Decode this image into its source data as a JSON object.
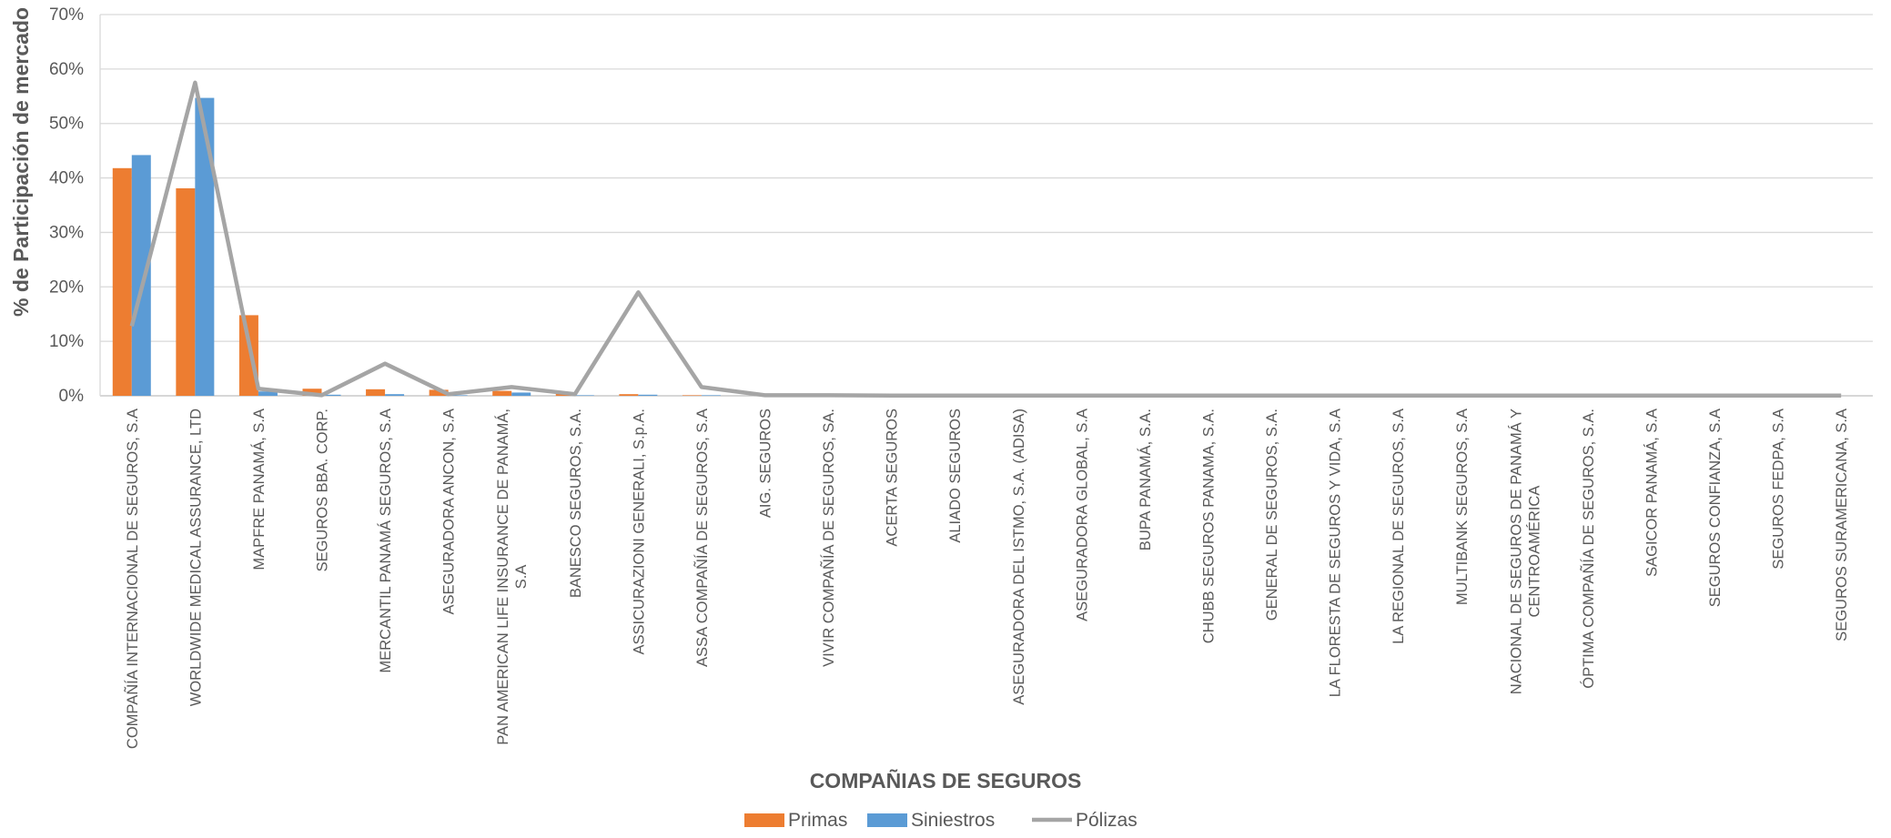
{
  "chart_data": {
    "type": "bar",
    "title": "",
    "xlabel": "COMPAÑIAS DE SEGUROS",
    "ylabel": "% de Participación de mercado",
    "ylim": [
      0,
      70
    ],
    "yticks": [
      "0%",
      "10%",
      "20%",
      "30%",
      "40%",
      "50%",
      "60%",
      "70%"
    ],
    "grid": true,
    "legend_position": "bottom",
    "colors": {
      "Primas": "#ED7D31",
      "Siniestros": "#5B9BD5",
      "Pólizas": "#A5A5A5"
    },
    "categories": [
      [
        "COMPAÑÍA INTERNACIONAL DE SEGUROS, S.A"
      ],
      [
        "WORLDWIDE MEDICAL ASSURANCE, LTD"
      ],
      [
        "MAPFRE PANAMÁ, S.A"
      ],
      [
        "SEGUROS BBA. CORP."
      ],
      [
        "MERCANTIL PANAMÁ SEGUROS, S.A"
      ],
      [
        "ASEGURADORA ANCON, S.A"
      ],
      [
        "PAN AMERICAN LIFE INSURANCE DE PANAMÁ,",
        "S.A"
      ],
      [
        "BANESCO SEGUROS, S.A."
      ],
      [
        "ASSICURAZIONI GENERALI, S.p.A."
      ],
      [
        "ASSA COMPAÑÍA DE SEGUROS, S.A"
      ],
      [
        "AIG.  SEGUROS"
      ],
      [
        "VIVIR COMPAÑÍA DE SEGUROS, SA."
      ],
      [
        "ACERTA SEGUROS"
      ],
      [
        "ALIADO SEGUROS"
      ],
      [
        "ASEGURADORA DEL ISTMO, S.A. (ADISA)"
      ],
      [
        "ASEGURADORA GLOBAL, S.A"
      ],
      [
        "BUPA PANAMÁ, S.A."
      ],
      [
        "CHUBB SEGUROS PANAMA, S.A."
      ],
      [
        "GENERAL DE SEGUROS, S.A."
      ],
      [
        "LA FLORESTA DE SEGUROS Y VIDA, S.A"
      ],
      [
        "LA REGIONAL DE SEGUROS, S.A"
      ],
      [
        "MULTIBANK SEGUROS, S.A"
      ],
      [
        "NACIONAL DE SEGUROS  DE PANAMÁ Y",
        "CENTROAMÉRICA"
      ],
      [
        "ÓPTIMA COMPAÑÍA DE SEGUROS, S.A."
      ],
      [
        "SAGICOR PANAMÁ, S.A"
      ],
      [
        "SEGUROS CONFIANZA, S.A"
      ],
      [
        "SEGUROS FEDPA, S.A"
      ],
      [
        "SEGUROS SURAMERICANA, S.A"
      ]
    ],
    "series": [
      {
        "name": "Primas",
        "type": "bar",
        "values": [
          41.8,
          38.1,
          14.8,
          1.3,
          1.2,
          1.1,
          0.9,
          0.4,
          0.3,
          0.1,
          0,
          0,
          0,
          0,
          0,
          0,
          0,
          0,
          0,
          0,
          0,
          0,
          0,
          0,
          0,
          0,
          0,
          0
        ]
      },
      {
        "name": "Siniestros",
        "type": "bar",
        "values": [
          44.2,
          54.7,
          0.8,
          0.2,
          0.3,
          0.1,
          0.6,
          0.1,
          0.2,
          0.1,
          0,
          0,
          0,
          0,
          0,
          0,
          0,
          0,
          0,
          0,
          0,
          0,
          0,
          0,
          0,
          0,
          0,
          0
        ]
      },
      {
        "name": "Pólizas",
        "type": "line",
        "values": [
          12.8,
          57.5,
          1.3,
          0.1,
          5.9,
          0.3,
          1.6,
          0.3,
          19.0,
          1.6,
          0.1,
          0.1,
          0.05,
          0.05,
          0.05,
          0.05,
          0.05,
          0.05,
          0.05,
          0.05,
          0.05,
          0.05,
          0.05,
          0.05,
          0.05,
          0.05,
          0.05,
          0.05
        ]
      }
    ]
  }
}
